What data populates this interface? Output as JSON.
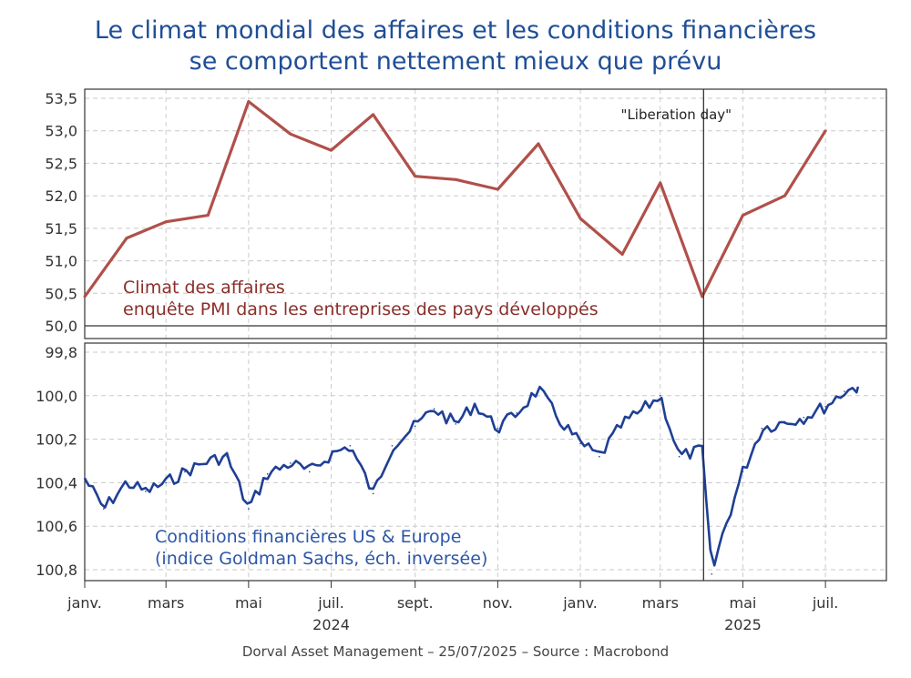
{
  "title_line1": "Le climat mondial des affaires et les conditions financières",
  "title_line2": "se comportent nettement mieux que prévu",
  "footer": "Dorval Asset Management – 25/07/2025  –   Source : Macrobond",
  "colors": {
    "title": "#1f4e96",
    "pmi": "#b0504a",
    "pmi_label": "#8b2e2a",
    "gs": "#1f3f95",
    "gs_label": "#2c56a8"
  },
  "chart_data": [
    {
      "type": "line",
      "annotation": "\"Liberation day\"",
      "series": [
        {
          "name": "Climat des affaires",
          "label_line1": "Climat des affaires",
          "label_line2": "enquête PMI dans les entreprises des pays développés",
          "x": [
            "2024-01-01",
            "2024-02-01",
            "2024-03-01",
            "2024-04-01",
            "2024-05-01",
            "2024-06-01",
            "2024-07-01",
            "2024-08-01",
            "2024-09-01",
            "2024-10-01",
            "2024-11-01",
            "2024-12-01",
            "2025-01-01",
            "2025-02-01",
            "2025-03-01",
            "2025-04-01",
            "2025-05-01",
            "2025-06-01",
            "2025-07-01"
          ],
          "values": [
            50.45,
            51.35,
            51.6,
            51.7,
            53.45,
            52.95,
            52.7,
            53.25,
            52.3,
            52.25,
            52.1,
            52.8,
            51.65,
            51.1,
            52.2,
            50.45,
            51.7,
            52.0,
            53.0
          ]
        }
      ],
      "ylim": [
        50.0,
        53.5
      ],
      "yticks": [
        "53,5",
        "53,0",
        "52,5",
        "52,0",
        "51,5",
        "51,0",
        "50,5",
        "50,0"
      ],
      "grid": true
    },
    {
      "type": "line",
      "y_scale": "inverted",
      "series": [
        {
          "name": "Conditions financières US & Europe",
          "label_line1": "Conditions financières US & Europe",
          "label_line2": "(indice Goldman Sachs, éch. inversée)",
          "x": [
            "2024-01-01",
            "2024-01-15",
            "2024-02-01",
            "2024-02-15",
            "2024-03-01",
            "2024-03-15",
            "2024-04-01",
            "2024-04-15",
            "2024-05-01",
            "2024-05-15",
            "2024-06-01",
            "2024-06-15",
            "2024-07-01",
            "2024-07-15",
            "2024-08-01",
            "2024-08-15",
            "2024-09-01",
            "2024-09-15",
            "2024-10-01",
            "2024-10-15",
            "2024-11-01",
            "2024-11-15",
            "2024-12-01",
            "2024-12-15",
            "2025-01-01",
            "2025-01-15",
            "2025-02-01",
            "2025-02-15",
            "2025-03-01",
            "2025-03-15",
            "2025-04-01",
            "2025-04-08",
            "2025-04-15",
            "2025-05-01",
            "2025-05-15",
            "2025-06-01",
            "2025-06-15",
            "2025-07-01",
            "2025-07-15",
            "2025-07-25"
          ],
          "values": [
            100.38,
            100.52,
            100.4,
            100.44,
            100.4,
            100.35,
            100.3,
            100.28,
            100.52,
            100.36,
            100.31,
            100.35,
            100.27,
            100.23,
            100.45,
            100.23,
            100.14,
            100.06,
            100.13,
            100.04,
            100.15,
            100.08,
            99.97,
            100.1,
            100.22,
            100.28,
            100.13,
            100.07,
            100.0,
            100.28,
            100.25,
            100.82,
            100.66,
            100.35,
            100.15,
            100.12,
            100.1,
            100.05,
            99.98,
            99.96
          ]
        }
      ],
      "ylim": [
        99.8,
        100.85
      ],
      "yticks": [
        "99,8",
        "100,0",
        "100,2",
        "100,4",
        "100,6",
        "100,8"
      ],
      "x_tick_labels": [
        "janv.",
        "mars",
        "mai",
        "juil.",
        "sept.",
        "nov.",
        "janv.",
        "mars",
        "mai",
        "juil."
      ],
      "year_labels": [
        "2024",
        "2025"
      ],
      "grid": true
    }
  ]
}
